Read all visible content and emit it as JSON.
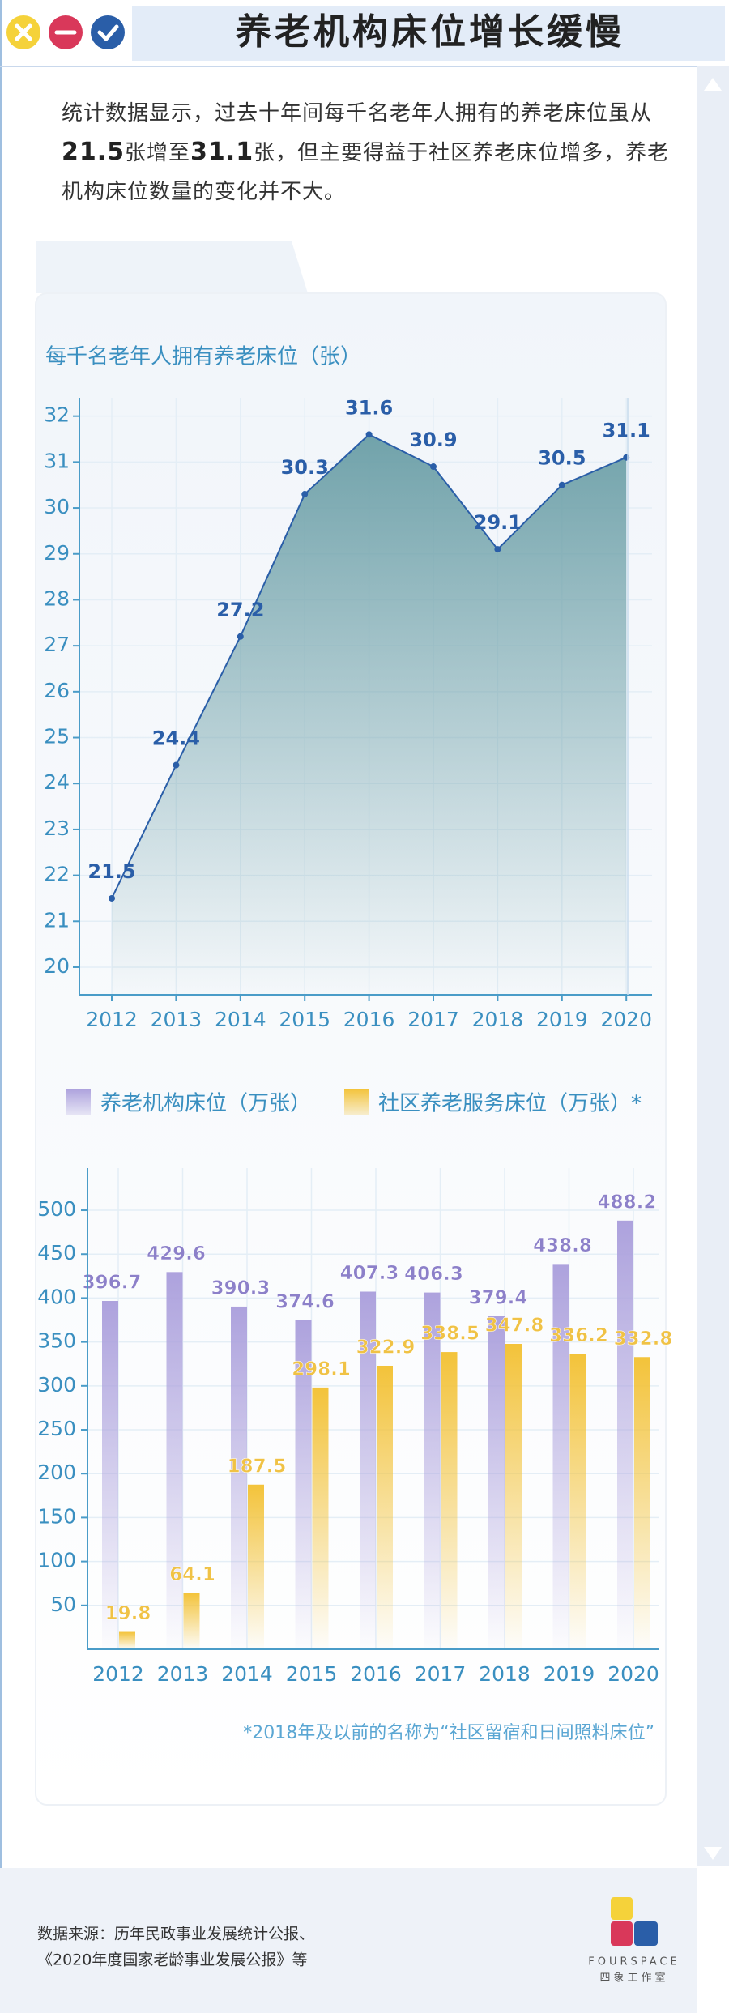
{
  "header": {
    "title": "养老机构床位增长缓慢"
  },
  "intro": [
    "统计数据显示，过去十年间每千名老年人拥有的养老床位虽从",
    "21.5",
    "张增至",
    "31.1",
    "张，但主要得益于社区养老床位增多，养老机构床位数量的变化并不大。"
  ],
  "chart_data": [
    {
      "type": "area",
      "title": "每千名老年人拥有养老床位（张）",
      "categories": [
        "2012",
        "2013",
        "2014",
        "2015",
        "2016",
        "2017",
        "2018",
        "2019",
        "2020"
      ],
      "values": [
        21.5,
        24.4,
        27.2,
        30.3,
        31.6,
        30.9,
        29.1,
        30.5,
        31.1
      ],
      "color": "#2a5ea8",
      "fill": "#6a9ea6",
      "ylim": [
        19.4,
        32.4
      ],
      "yticks": [
        20,
        21,
        22,
        23,
        24,
        25,
        26,
        27,
        28,
        29,
        30,
        31,
        32
      ],
      "grid": true
    },
    {
      "type": "bar",
      "categories": [
        "2012",
        "2013",
        "2014",
        "2015",
        "2016",
        "2017",
        "2018",
        "2019",
        "2020"
      ],
      "series": [
        {
          "name": "养老机构床位（万张）",
          "color": "#ada2dd",
          "label_color": "#8c80c9",
          "values": [
            396.7,
            429.6,
            390.3,
            374.6,
            407.3,
            406.3,
            379.4,
            438.8,
            488.2
          ]
        },
        {
          "name": "社区养老服务床位（万张）*",
          "color": "#f3c33a",
          "label_color": "#f0c245",
          "values": [
            19.8,
            64.1,
            187.5,
            298.1,
            322.9,
            338.5,
            347.8,
            336.2,
            332.8
          ]
        }
      ],
      "ylim": [
        0,
        548
      ],
      "yticks": [
        50,
        100,
        150,
        200,
        250,
        300,
        350,
        400,
        450,
        500
      ],
      "grid": true,
      "legend": "top-left",
      "footnote": "*2018年及以前的名称为“社区留宿和日间照料床位”"
    }
  ],
  "source": [
    "数据来源：历年民政事业发展统计公报、",
    "《2020年度国家老龄事业发展公报》等"
  ],
  "logo": {
    "name": "FOURSPACE",
    "subname": "四象工作室"
  }
}
